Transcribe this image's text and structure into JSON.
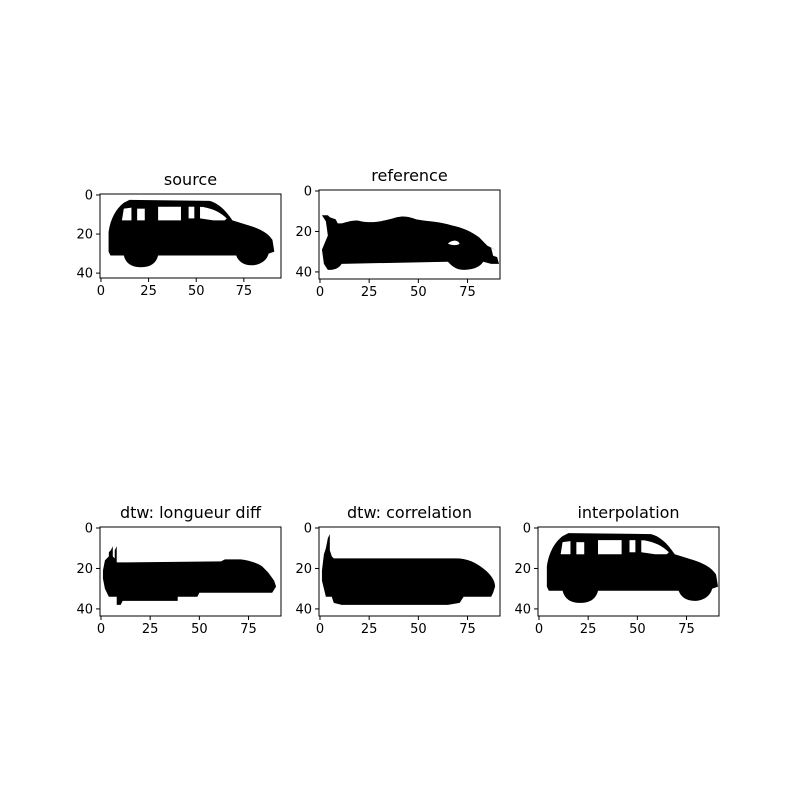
{
  "chart_data": [
    {
      "type": "image",
      "title": "source",
      "image_shape": [
        43,
        95
      ],
      "xticks": [
        0,
        25,
        50,
        75
      ],
      "yticks": [
        0,
        20,
        40
      ],
      "silhouette": "hatchback-car"
    },
    {
      "type": "image",
      "title": "reference",
      "image_shape": [
        44,
        92
      ],
      "xticks": [
        0,
        25,
        50,
        75
      ],
      "yticks": [
        0,
        20,
        40
      ],
      "silhouette": "sports-car"
    },
    {
      "type": "image",
      "title": "dtw: longueur diff",
      "image_shape": [
        44,
        92
      ],
      "xticks": [
        0,
        25,
        50,
        75
      ],
      "yticks": [
        0,
        20,
        40
      ],
      "silhouette": "warped-car-blob"
    },
    {
      "type": "image",
      "title": "dtw: correlation",
      "image_shape": [
        44,
        92
      ],
      "xticks": [
        0,
        25,
        50,
        75
      ],
      "yticks": [
        0,
        20,
        40
      ],
      "silhouette": "warped-car-blob-rounded"
    },
    {
      "type": "image",
      "title": "interpolation",
      "image_shape": [
        44,
        92
      ],
      "xticks": [
        0,
        25,
        50,
        75
      ],
      "yticks": [
        0,
        20,
        40
      ],
      "silhouette": "hatchback-car"
    }
  ]
}
